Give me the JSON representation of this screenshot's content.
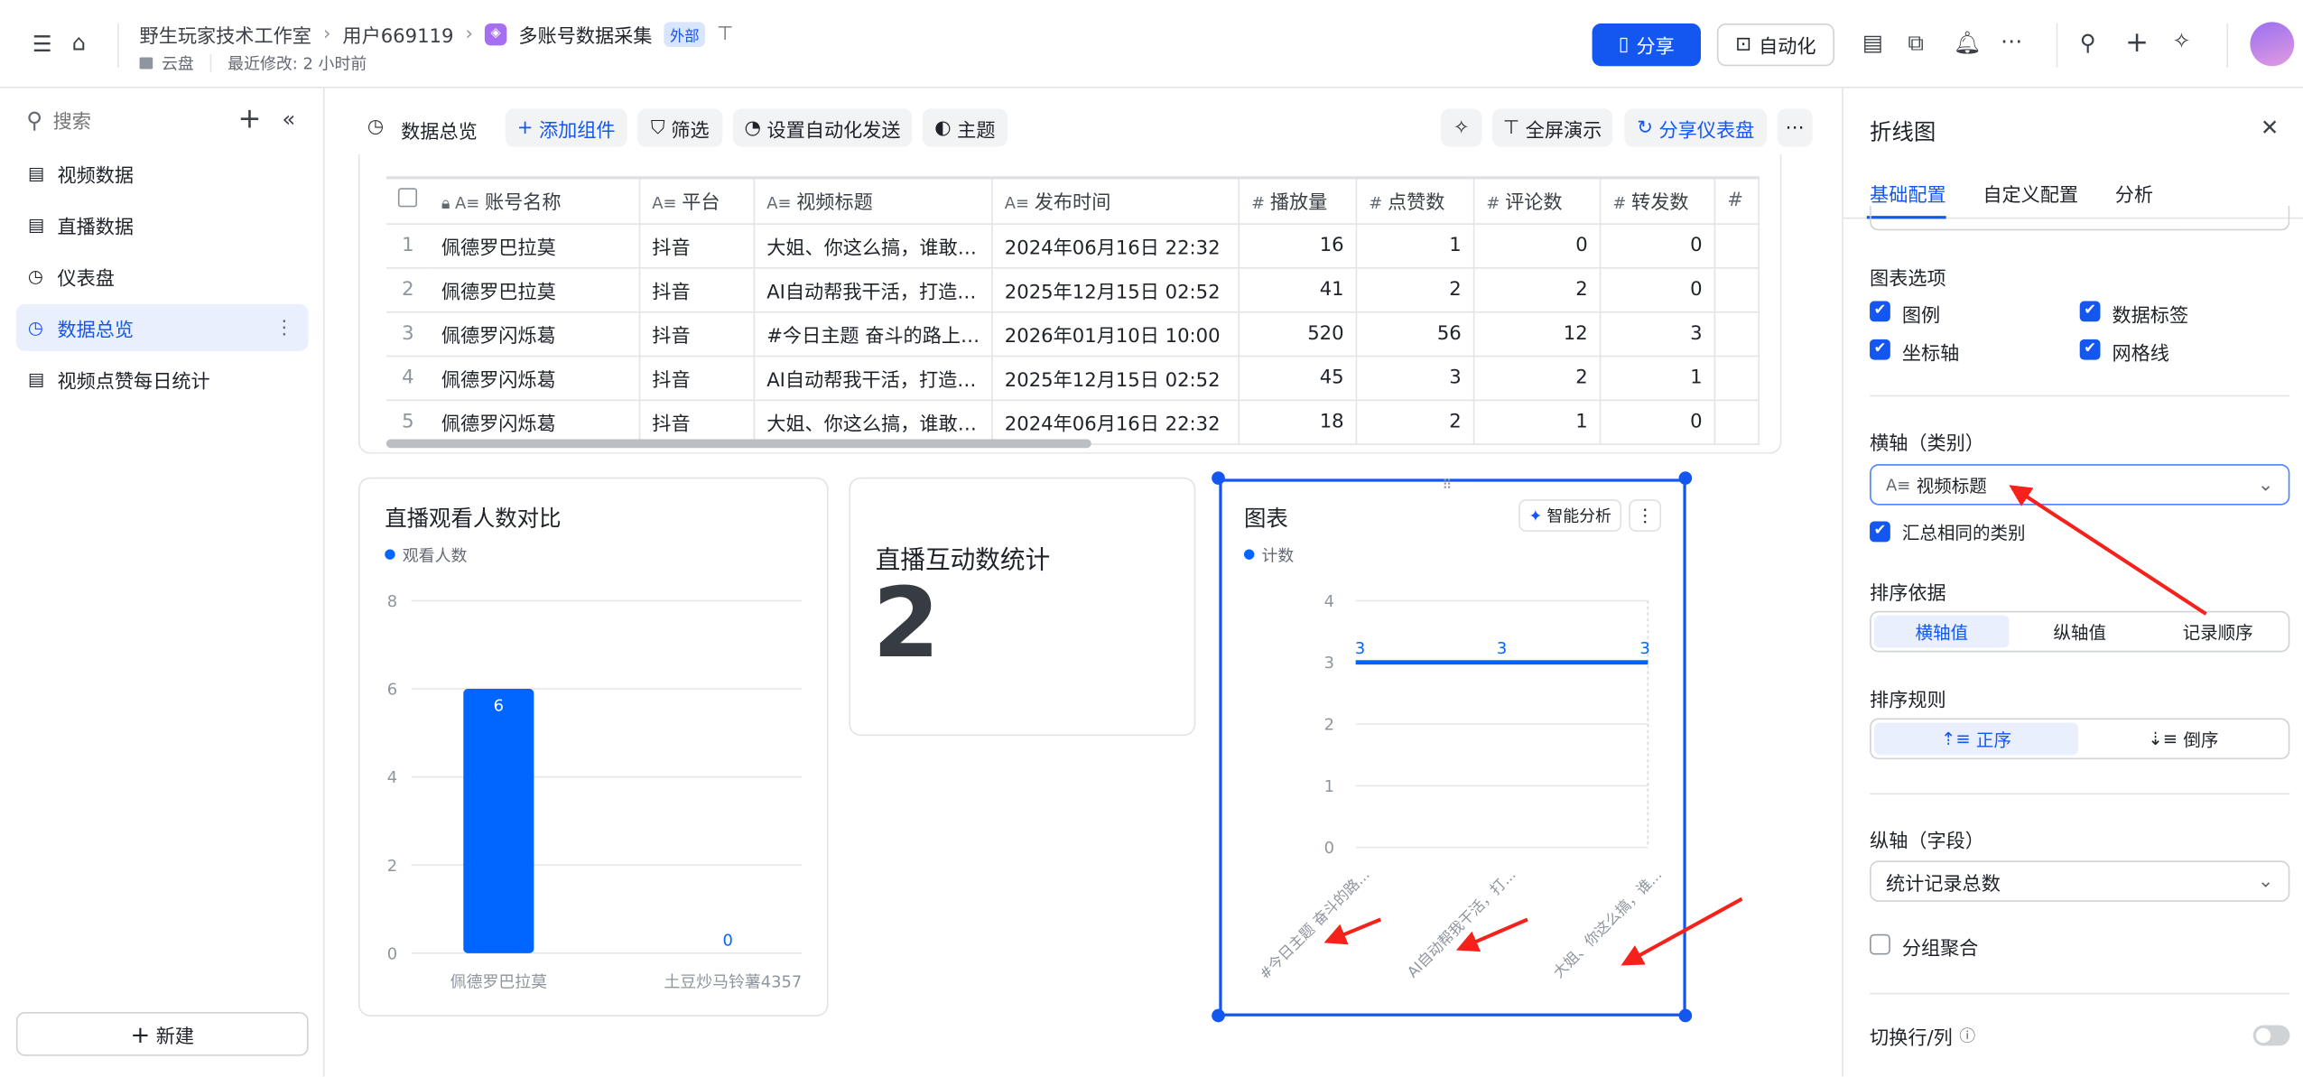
{
  "header": {
    "breadcrumb": [
      "野生玩家技术工作室",
      "用户669119",
      "多账号数据采集"
    ],
    "external_badge": "外部",
    "location": "云盘",
    "last_modified": "最近修改: 2 小时前",
    "share_label": "分享",
    "automation_label": "自动化",
    "accent": "#1456f0"
  },
  "sidebar": {
    "search_placeholder": "搜索",
    "items": [
      {
        "label": "视频数据",
        "icon": "table-icon"
      },
      {
        "label": "直播数据",
        "icon": "table-icon"
      },
      {
        "label": "仪表盘",
        "icon": "dashboard-icon"
      },
      {
        "label": "数据总览",
        "icon": "dashboard-icon",
        "active": true
      },
      {
        "label": "视频点赞每日统计",
        "icon": "table-icon"
      }
    ],
    "new_label": "新建"
  },
  "toolbar": {
    "title": "数据总览",
    "add_component": "添加组件",
    "filter": "筛选",
    "auto_send": "设置自动化发送",
    "theme": "主题",
    "fullscreen": "全屏演示",
    "share_dashboard": "分享仪表盘"
  },
  "table": {
    "columns": [
      "账号名称",
      "平台",
      "视频标题",
      "发布时间",
      "播放量",
      "点赞数",
      "评论数",
      "转发数"
    ],
    "rows": [
      [
        "1",
        "佩德罗巴拉莫",
        "抖音",
        "大姐、你这么搞，谁敢…",
        "2024年06月16日 22:32",
        "16",
        "1",
        "0",
        "0"
      ],
      [
        "2",
        "佩德罗巴拉莫",
        "抖音",
        "AI自动帮我干活，打造…",
        "2025年12月15日 02:52",
        "41",
        "2",
        "2",
        "0"
      ],
      [
        "3",
        "佩德罗闪烁葛",
        "抖音",
        "#今日主题 奋斗的路上…",
        "2026年01月10日 10:00",
        "520",
        "56",
        "12",
        "3"
      ],
      [
        "4",
        "佩德罗闪烁葛",
        "抖音",
        "AI自动帮我干活，打造…",
        "2025年12月15日 02:52",
        "45",
        "3",
        "2",
        "1"
      ],
      [
        "5",
        "佩德罗闪烁葛",
        "抖音",
        "大姐、你这么搞，谁敢…",
        "2024年06月16日 22:32",
        "18",
        "2",
        "1",
        "0"
      ]
    ]
  },
  "kpi": {
    "title": "直播互动数统计",
    "value": "2"
  },
  "chart_data": [
    {
      "type": "bar",
      "title": "直播观看人数对比",
      "categories": [
        "佩德罗巴拉莫",
        "土豆炒马铃薯4357"
      ],
      "series": [
        {
          "name": "观看人数",
          "values": [
            6,
            0
          ],
          "color": "#0066ff"
        }
      ],
      "ylim": [
        0,
        8
      ],
      "yticks": [
        "0",
        "2",
        "4",
        "6",
        "8"
      ],
      "grid": true,
      "legend": "top-left",
      "data_labels": true
    },
    {
      "type": "line",
      "title": "图表",
      "categories": [
        "#今日主题 奋斗的路...",
        "AI自动帮我干活，打...",
        "大姐、你这么搞，谁..."
      ],
      "series": [
        {
          "name": "计数",
          "values": [
            3,
            3,
            3
          ],
          "color": "#0066ff"
        }
      ],
      "ylim": [
        0,
        4
      ],
      "yticks": [
        "0",
        "1",
        "2",
        "3",
        "4"
      ],
      "grid": true,
      "legend": "top-left",
      "data_labels": true
    }
  ],
  "line_card": {
    "ai_button": "智能分析"
  },
  "panel": {
    "title": "折线图",
    "tabs": [
      "基础配置",
      "自定义配置",
      "分析"
    ],
    "chart_options_label": "图表选项",
    "options": [
      {
        "label": "图例",
        "checked": true
      },
      {
        "label": "数据标签",
        "checked": true
      },
      {
        "label": "坐标轴",
        "checked": true
      },
      {
        "label": "网格线",
        "checked": true
      }
    ],
    "x_axis_label": "横轴（类别）",
    "x_axis_value": "视频标题",
    "merge_same": "汇总相同的类别",
    "sort_by_label": "排序依据",
    "sort_by": [
      "横轴值",
      "纵轴值",
      "记录顺序"
    ],
    "sort_rule_label": "排序规则",
    "sort_rule": [
      "正序",
      "倒序"
    ],
    "y_axis_label": "纵轴（字段）",
    "y_axis_value": "统计记录总数",
    "group_agg": "分组聚合",
    "switch_rows": "切换行/列",
    "switch_on": false
  }
}
